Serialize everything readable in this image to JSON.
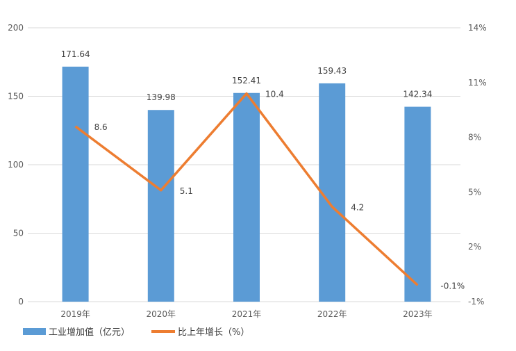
{
  "chart_data": {
    "type": "bar+line",
    "categories": [
      "2019年",
      "2020年",
      "2021年",
      "2022年",
      "2023年"
    ],
    "series": [
      {
        "name": "工业增加值（亿元）",
        "type": "bar",
        "axis": "left",
        "values": [
          171.64,
          139.98,
          152.41,
          159.43,
          142.34
        ],
        "labels": [
          "171.64",
          "139.98",
          "152.41",
          "159.43",
          "142.34"
        ],
        "color": "#5B9BD5"
      },
      {
        "name": "比上年增长（%）",
        "type": "line",
        "axis": "right",
        "values": [
          8.6,
          5.1,
          10.4,
          4.2,
          -0.1
        ],
        "labels": [
          "8.6",
          "5.1",
          "10.4",
          "4.2",
          "-0.1%"
        ],
        "color": "#ED7D31"
      }
    ],
    "left_axis": {
      "range": [
        0,
        200
      ],
      "ticks": [
        "0",
        "50",
        "100",
        "150",
        "200"
      ]
    },
    "right_axis": {
      "range": [
        -1,
        14
      ],
      "ticks": [
        "-1%",
        "2%",
        "5%",
        "8%",
        "11%",
        "14%"
      ]
    },
    "grid": true,
    "legend": "bottom-left"
  }
}
